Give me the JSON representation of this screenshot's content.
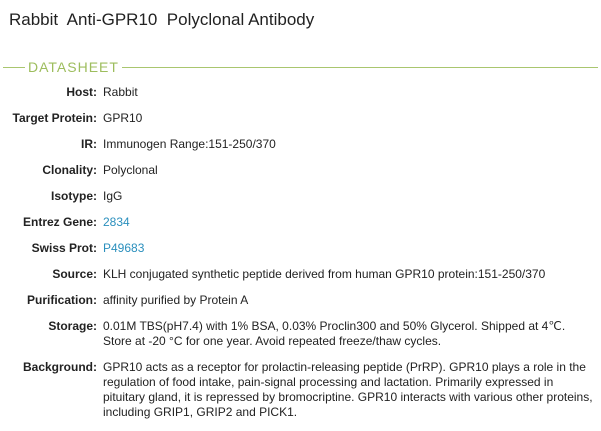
{
  "title": "Rabbit  Anti-GPR10  Polyclonal Antibody",
  "section": "DATASHEET",
  "colors": {
    "accent": "#9dbd5d",
    "link": "#2a8fbd"
  },
  "rows": [
    {
      "label": "Host:",
      "value": "Rabbit"
    },
    {
      "label": "Target Protein:",
      "value": "GPR10"
    },
    {
      "label": "IR:",
      "value": "Immunogen Range:151-250/370"
    },
    {
      "label": "Clonality:",
      "value": "Polyclonal"
    },
    {
      "label": "Isotype:",
      "value": "IgG"
    },
    {
      "label": "Entrez Gene:",
      "value": "2834"
    },
    {
      "label": "Swiss Prot:",
      "value": "P49683"
    },
    {
      "label": "Source:",
      "value": "KLH conjugated synthetic peptide derived from human GPR10 protein:151-250/370"
    },
    {
      "label": "Purification:",
      "value": "affinity purified by Protein A"
    },
    {
      "label": "Storage:",
      "value": "0.01M TBS(pH7.4) with 1% BSA, 0.03% Proclin300 and 50% Glycerol. Shipped at 4℃. Store at -20 °C for one year. Avoid repeated freeze/thaw cycles."
    },
    {
      "label": "Background:",
      "value": "GPR10 acts as a receptor for prolactin-releasing peptide (PrRP). GPR10 plays a role in the regulation of food intake, pain-signal processing and lactation. Primarily expressed in pituitary gland, it is repressed by bromocriptine. GPR10 interacts with various other proteins, including GRIP1, GRIP2 and PICK1."
    }
  ]
}
